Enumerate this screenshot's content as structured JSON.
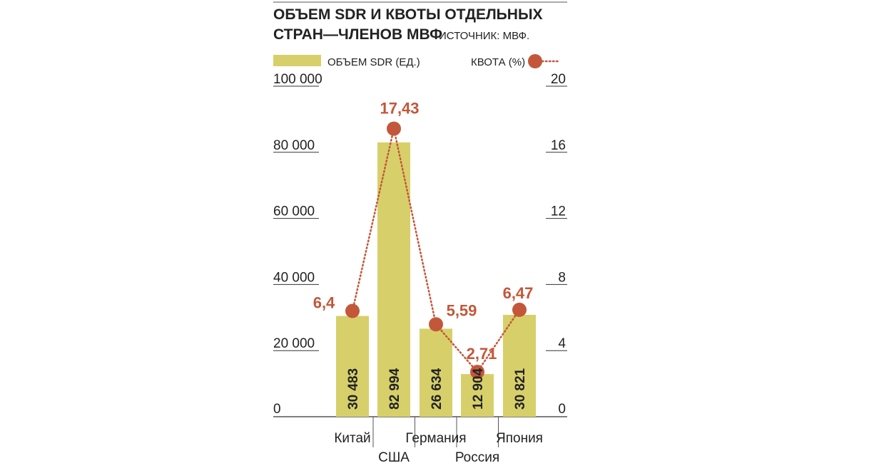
{
  "header": {
    "title_line1": "ОБЪЕМ SDR И КВОТЫ ОТДЕЛЬНЫХ",
    "title_line2": "СТРАН—ЧЛЕНОВ МВФ",
    "source": "ИСТОЧНИК: МВФ."
  },
  "legend": {
    "bars_label": "ОБЪЕМ SDR (ЕД.)",
    "quota_label": "КВОТА (%)"
  },
  "colors": {
    "bar": "#d7d06a",
    "quota": "#c3573a",
    "text": "#222222",
    "rule": "#333333"
  },
  "chart_data": {
    "type": "bar",
    "categories": [
      "Китай",
      "США",
      "Германия",
      "Россия",
      "Япония"
    ],
    "series": [
      {
        "name": "ОБЪЕМ SDR (ЕД.)",
        "type": "bar",
        "axis": "left",
        "values": [
          30483,
          82994,
          26634,
          12904,
          30821
        ],
        "labels": [
          "30 483",
          "82 994",
          "26 634",
          "12 904",
          "30 821"
        ]
      },
      {
        "name": "КВОТА (%)",
        "type": "line",
        "axis": "right",
        "values": [
          6.4,
          17.43,
          5.59,
          2.71,
          6.47
        ],
        "labels": [
          "6,4",
          "17,43",
          "5,59",
          "2,71",
          "6,47"
        ]
      }
    ],
    "y_left": {
      "range": [
        0,
        100000
      ],
      "ticks": [
        0,
        20000,
        40000,
        60000,
        80000,
        100000
      ],
      "tick_labels": [
        "0",
        "20 000",
        "40 000",
        "60 000",
        "80 000",
        "100 000"
      ]
    },
    "y_right": {
      "range": [
        0,
        20
      ],
      "ticks": [
        0,
        4,
        8,
        12,
        16,
        20
      ],
      "tick_labels": [
        "0",
        "4",
        "8",
        "12",
        "16",
        "20"
      ]
    },
    "legend_position": "top",
    "grid": false
  }
}
